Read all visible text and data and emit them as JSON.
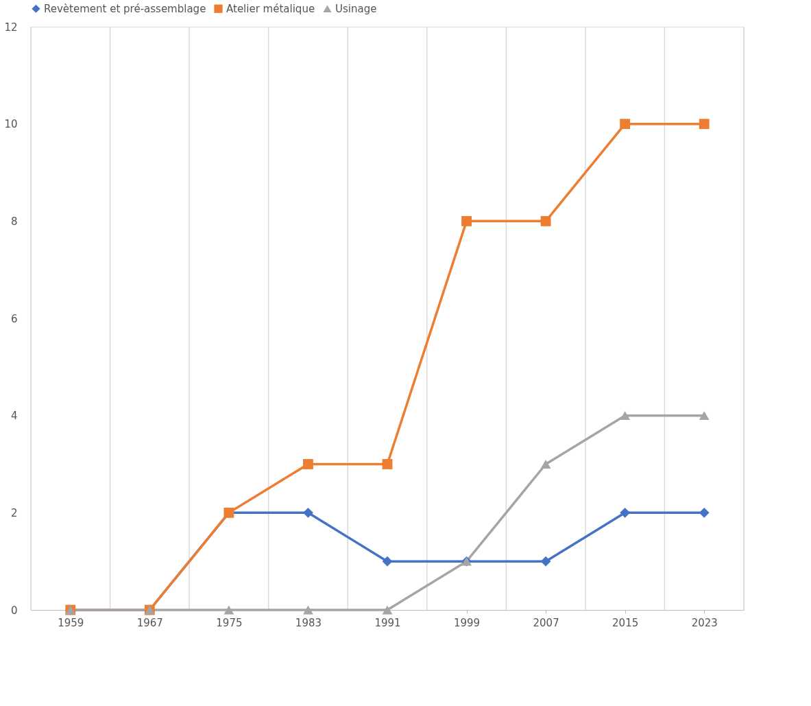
{
  "chart_data": {
    "type": "line",
    "categories": [
      "1959",
      "1967",
      "1975",
      "1983",
      "1991",
      "1999",
      "2007",
      "2015",
      "2023"
    ],
    "series": [
      {
        "name": "Revètement et pré-assemblage",
        "color": "#4472c4",
        "marker": "diamond",
        "values": [
          0,
          0,
          2,
          2,
          1,
          1,
          1,
          2,
          2
        ]
      },
      {
        "name": "Atelier métalique",
        "color": "#ed7d31",
        "marker": "square",
        "values": [
          0,
          0,
          2,
          3,
          3,
          8,
          8,
          10,
          10
        ]
      },
      {
        "name": "Usinage",
        "color": "#a5a5a5",
        "marker": "triangle",
        "values": [
          0,
          0,
          0,
          0,
          0,
          1,
          3,
          4,
          4
        ]
      }
    ],
    "ylim": [
      0,
      12
    ],
    "yticks": [
      0,
      2,
      4,
      6,
      8,
      10,
      12
    ],
    "grid": "x",
    "legend": "top",
    "line_style": "solid"
  }
}
